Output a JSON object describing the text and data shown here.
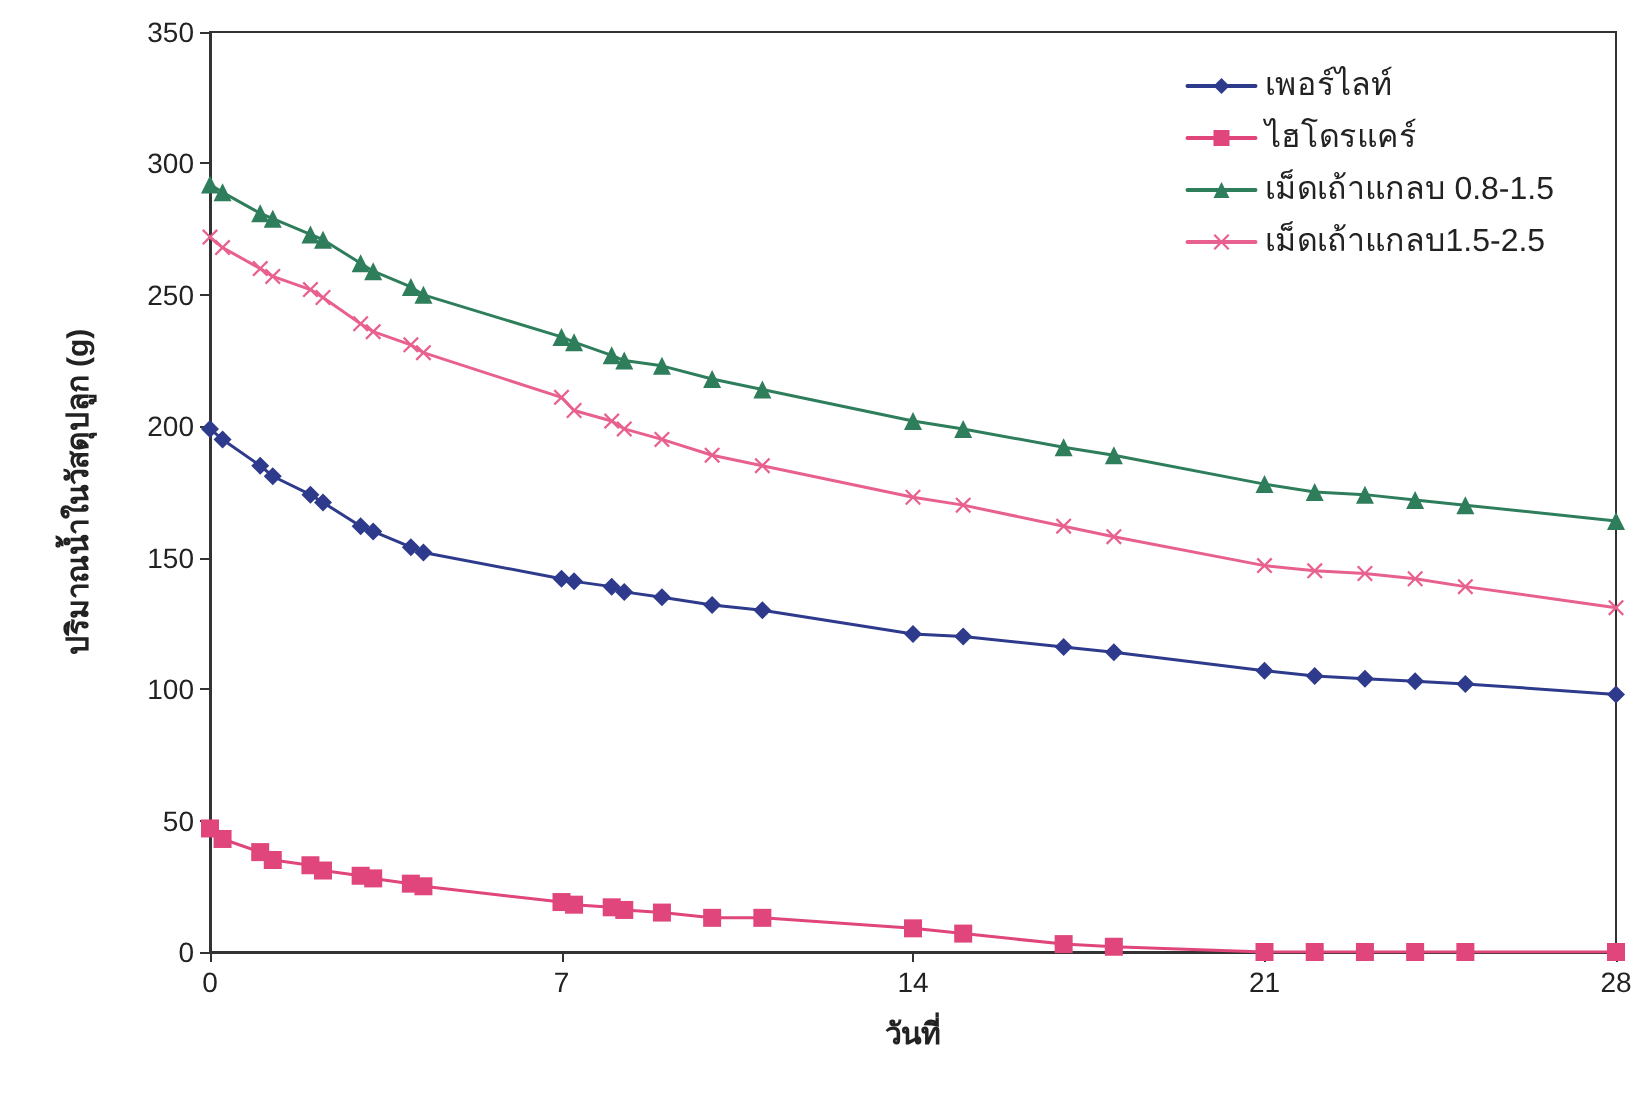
{
  "chart_data": {
    "type": "line",
    "xlabel": "วันที่",
    "ylabel": "ปริมาณน้ำในวัสดุปลูก (g)",
    "x": [
      0,
      0.25,
      1,
      1.25,
      2,
      2.25,
      3,
      3.25,
      4,
      4.25,
      7,
      7.25,
      8,
      8.25,
      9,
      10,
      11,
      14,
      15,
      17,
      18,
      21,
      22,
      23,
      24,
      25,
      28
    ],
    "xlim": [
      0,
      28
    ],
    "xticks": [
      0,
      7,
      14,
      21,
      28
    ],
    "ylim": [
      0,
      350
    ],
    "yticks": [
      0,
      50,
      100,
      150,
      200,
      250,
      300,
      350
    ],
    "grid": false,
    "legend": "top right",
    "line_style": "solid",
    "series": [
      {
        "name": "เพอร์ไลท์",
        "color": "#2e3a8c",
        "marker": "diamond",
        "values": [
          199,
          195,
          185,
          181,
          174,
          171,
          162,
          160,
          154,
          152,
          142,
          141,
          139,
          137,
          135,
          132,
          130,
          121,
          120,
          116,
          114,
          107,
          105,
          104,
          103,
          102,
          98
        ]
      },
      {
        "name": "ไฮโดรแคร์",
        "color": "#e0457b",
        "marker": "square",
        "values": [
          47,
          43,
          38,
          35,
          33,
          31,
          29,
          28,
          26,
          25,
          19,
          18,
          17,
          16,
          15,
          13,
          13,
          9,
          7,
          3,
          2,
          0,
          0,
          0,
          0,
          0,
          0
        ]
      },
      {
        "name": "เม็ดเถ้าแกลบ 0.8-1.5",
        "color": "#2e7d5b",
        "marker": "triangle",
        "values": [
          292,
          289,
          281,
          279,
          273,
          271,
          262,
          259,
          253,
          250,
          234,
          232,
          227,
          225,
          223,
          218,
          214,
          202,
          199,
          192,
          189,
          178,
          175,
          174,
          172,
          170,
          164
        ]
      },
      {
        "name": "เม็ดเถ้าแกลบ1.5-2.5",
        "color": "#e8608f",
        "marker": "cross",
        "values": [
          272,
          268,
          260,
          257,
          252,
          249,
          239,
          236,
          231,
          228,
          211,
          206,
          202,
          199,
          195,
          189,
          185,
          173,
          170,
          162,
          158,
          147,
          145,
          144,
          142,
          139,
          131
        ]
      }
    ]
  }
}
